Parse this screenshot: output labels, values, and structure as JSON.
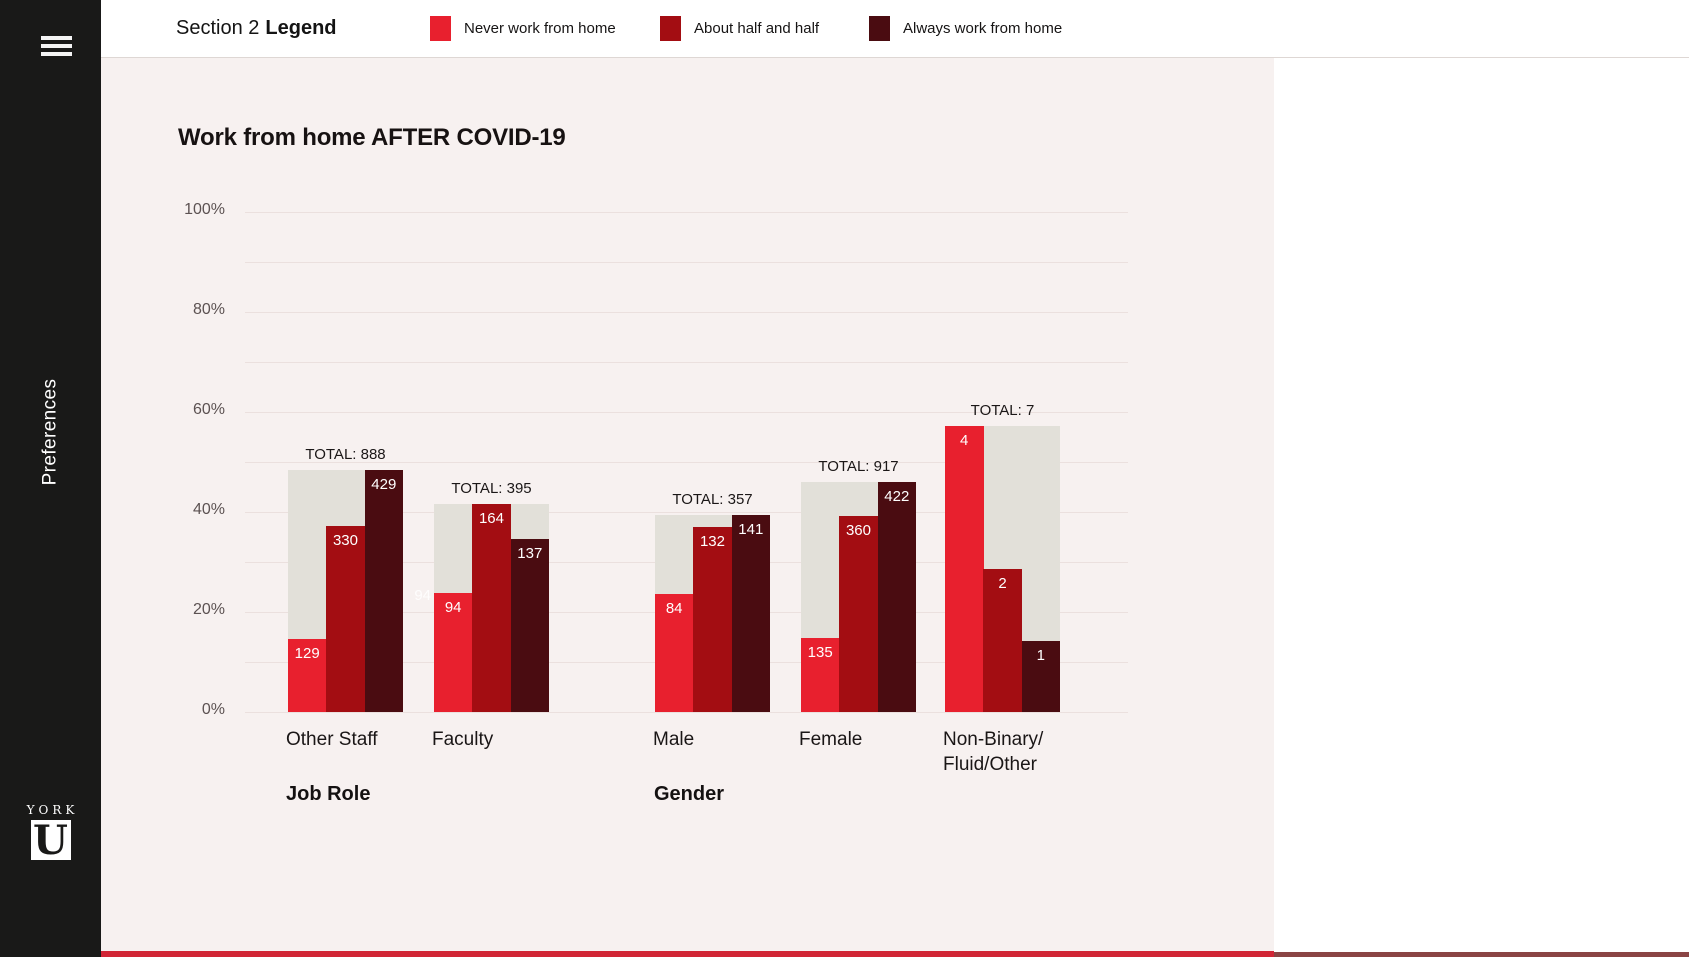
{
  "sidebar": {
    "preferences_label": "Preferences",
    "logo": {
      "wordmark": "YORK",
      "letter": "U"
    }
  },
  "header": {
    "section_title": "Section 2",
    "section_title_bold": "Legend",
    "legend_items": [
      {
        "label": "Never work from home",
        "color": "#e8202e"
      },
      {
        "label": "About half and half",
        "color": "#a30d12"
      },
      {
        "label": "Always work from home",
        "color": "#4a0c11"
      }
    ]
  },
  "colors": {
    "sidebar_bg": "#191918",
    "panel_bg": "#f7f1f0",
    "total_bar": "#e2e0d9",
    "gridline": "#ebe0de",
    "tick_text": "#5c5252",
    "footer_strip_left": "#d12535",
    "footer_strip_right": "#8a4444",
    "series": [
      "#e8202e",
      "#a30d12",
      "#4a0c11"
    ]
  },
  "chart_data": {
    "type": "bar",
    "title": "Work from home AFTER COVID-19",
    "ylim": [
      0,
      100
    ],
    "ytick_labels": [
      "0%",
      "20%",
      "40%",
      "60%",
      "80%",
      "100%"
    ],
    "gridlines_every_pct": 10,
    "legend_position": "top header bar",
    "series": [
      "Never work from home",
      "About half and half",
      "Always work from home"
    ],
    "bar_height_rule": "bar height = value / group TOTAL, shown as percent of group",
    "groups": [
      {
        "category": "Other Staff",
        "total": 888,
        "total_label": "TOTAL: 888",
        "values": [
          129,
          330,
          429
        ]
      },
      {
        "category": "Faculty",
        "total": 395,
        "total_label": "TOTAL: 395",
        "values": [
          94,
          164,
          137
        ]
      },
      {
        "category": "Male",
        "total": 357,
        "total_label": "TOTAL: 357",
        "values": [
          84,
          132,
          141
        ]
      },
      {
        "category": "Female",
        "total": 917,
        "total_label": "TOTAL: 917",
        "values": [
          135,
          360,
          422
        ]
      },
      {
        "category": "Non-Binary/\nFluid/Other",
        "total": 7,
        "total_label": "TOTAL: 7",
        "values": [
          4,
          2,
          1
        ]
      }
    ],
    "axes": [
      {
        "label": "Job Role",
        "categories": [
          "Other Staff",
          "Faculty"
        ]
      },
      {
        "label": "Gender",
        "categories": [
          "Male",
          "Female",
          "Non-Binary/Fluid/Other"
        ]
      }
    ],
    "annotations": [
      {
        "text": "94",
        "description": "extra white value label on background, left of Faculty group"
      }
    ]
  }
}
